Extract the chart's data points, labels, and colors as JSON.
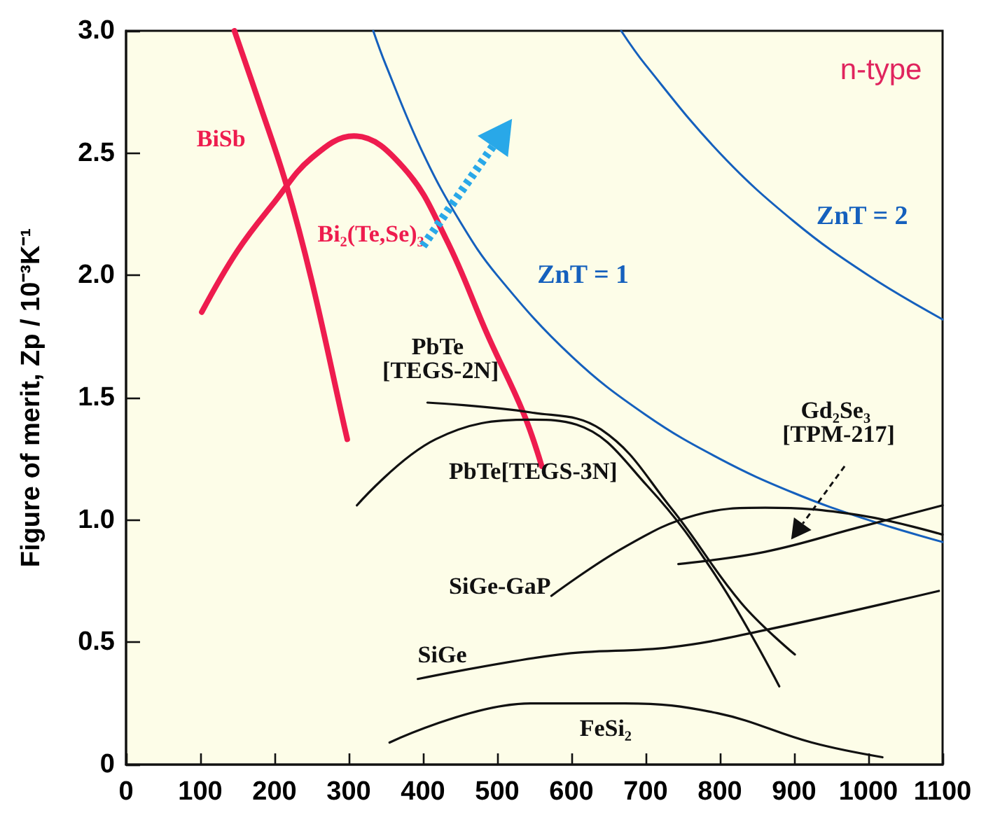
{
  "chart_data": {
    "type": "line",
    "ylabel": "Figure of merit, Zp / 10⁻³K⁻¹",
    "xlim": [
      0,
      1100
    ],
    "xticks": [
      0,
      100,
      200,
      300,
      400,
      500,
      600,
      700,
      800,
      900,
      1000,
      1100
    ],
    "ylim": [
      0,
      3.0
    ],
    "yticks": [
      0,
      0.5,
      {
        "value": 1,
        "label": "1.0"
      },
      1.5,
      {
        "value": 2,
        "label": "2.0"
      },
      2.5,
      {
        "value": 3,
        "label": "3.0"
      }
    ],
    "grid": false,
    "legend": false,
    "marker": "none",
    "line_style": "solid",
    "annotations": [
      "n-type"
    ],
    "series": [
      {
        "name": "BiSb",
        "color": "#ee1c4e",
        "x": [
          146,
          180,
          216,
          250,
          292,
          298
        ],
        "values": [
          3.0,
          2.7,
          2.37,
          1.98,
          1.41,
          1.33
        ]
      },
      {
        "name": "Bi₂(Te,Se)₃",
        "color": "#ee1c4e",
        "x": [
          102,
          150,
          200,
          250,
          307,
          374,
          431,
          488,
          535,
          560
        ],
        "values": [
          1.85,
          2.1,
          2.3,
          2.48,
          2.57,
          2.44,
          2.15,
          1.75,
          1.44,
          1.22
        ]
      },
      {
        "name": "ZnT = 1",
        "color": "#1560bd",
        "x": [
          333,
          350,
          400,
          450,
          500,
          600,
          700,
          800,
          900,
          1000,
          1100
        ],
        "values": [
          3.0,
          2.86,
          2.5,
          2.22,
          2.0,
          1.67,
          1.43,
          1.25,
          1.11,
          1.0,
          0.91
        ]
      },
      {
        "name": "ZnT = 2",
        "color": "#1560bd",
        "x": [
          667,
          700,
          800,
          900,
          1000,
          1100
        ],
        "values": [
          3.0,
          2.86,
          2.5,
          2.22,
          2.0,
          1.82
        ]
      },
      {
        "name": "PbTe [TEGS-2N]",
        "color": "#111111",
        "x": [
          406,
          545,
          640,
          734,
          829,
          901
        ],
        "values": [
          1.48,
          1.44,
          1.37,
          1.05,
          0.66,
          0.45
        ]
      },
      {
        "name": "PbTe[TEGS-3N]",
        "color": "#111111",
        "x": [
          311,
          417,
          545,
          607,
          702,
          797,
          880
        ],
        "values": [
          1.06,
          1.33,
          1.41,
          1.39,
          1.14,
          0.76,
          0.32
        ]
      },
      {
        "name": "SiGe-GaP",
        "color": "#111111",
        "x": [
          573,
          672,
          767,
          861,
          987,
          1100
        ],
        "values": [
          0.69,
          0.89,
          1.02,
          1.05,
          1.02,
          0.94
        ]
      },
      {
        "name": "Gd₂Se₃ [TPM-217]",
        "color": "#111111",
        "x": [
          744,
          861,
          987,
          1100
        ],
        "values": [
          0.82,
          0.87,
          0.97,
          1.06
        ]
      },
      {
        "name": "SiGe",
        "color": "#111111",
        "x": [
          393,
          583,
          734,
          861,
          1095
        ],
        "values": [
          0.35,
          0.45,
          0.48,
          0.55,
          0.71
        ]
      },
      {
        "name": "FeSi₂",
        "color": "#111111",
        "x": [
          355,
          545,
          672,
          797,
          924,
          1019
        ],
        "values": [
          0.09,
          0.25,
          0.25,
          0.21,
          0.09,
          0.03
        ]
      }
    ]
  }
}
